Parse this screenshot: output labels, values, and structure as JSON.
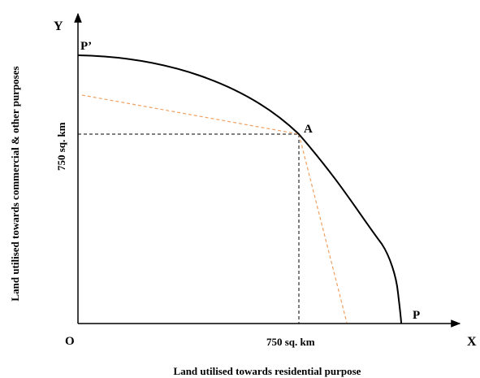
{
  "axes": {
    "y_letter": "Y",
    "x_letter": "X",
    "origin": "O"
  },
  "labels": {
    "y_axis_title": "Land utilised towards commercial & other purposes",
    "x_axis_title": "Land utilised towards residential purpose",
    "y_value": "750 sq. km",
    "x_value": "750 sq. km",
    "point_a": "A",
    "point_p": "P",
    "point_p_prime": "P’"
  },
  "colors": {
    "curve": "#000000",
    "tangent": "#f0a060",
    "guide": "#000000"
  }
}
